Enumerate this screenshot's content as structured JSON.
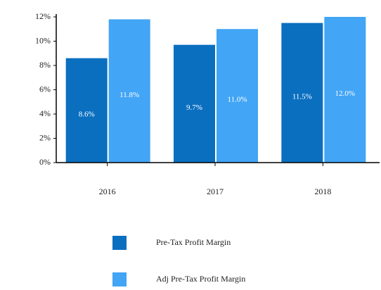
{
  "chart_data": {
    "type": "bar",
    "categories": [
      "2016",
      "2017",
      "2018"
    ],
    "series": [
      {
        "name": "Pre-Tax Profit Margin",
        "color": "#0b6fc0",
        "values": [
          8.6,
          9.7,
          11.5
        ],
        "value_labels": [
          "8.6%",
          "9.7%",
          "11.5%"
        ]
      },
      {
        "name": "Adj Pre-Tax Profit Margin",
        "color": "#42a5f5",
        "values": [
          11.8,
          11.0,
          12.0
        ],
        "value_labels": [
          "11.8%",
          "11.0%",
          "12.0%"
        ]
      }
    ],
    "ylim": [
      0,
      12
    ],
    "yticks": [
      {
        "value": 0,
        "label": "0%"
      },
      {
        "value": 2,
        "label": "2%"
      },
      {
        "value": 4,
        "label": "4%"
      },
      {
        "value": 6,
        "label": "6%"
      },
      {
        "value": 8,
        "label": "8%"
      },
      {
        "value": 10,
        "label": "10%"
      },
      {
        "value": 12,
        "label": "12%"
      }
    ],
    "grid": false,
    "legend": "bottom"
  }
}
